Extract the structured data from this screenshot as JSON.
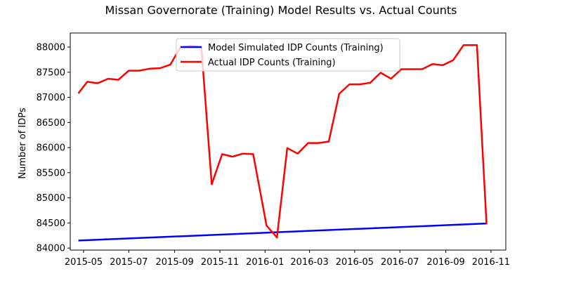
{
  "chart_data": {
    "type": "line",
    "title": "Missan Governorate (Training) Model Results vs. Actual Counts",
    "xlabel": "",
    "ylabel": "Number of IDPs",
    "x_tick_labels": [
      "2015-05",
      "2015-07",
      "2015-09",
      "2015-11",
      "2016-01",
      "2016-03",
      "2016-05",
      "2016-07",
      "2016-09",
      "2016-11"
    ],
    "x_ticks": [
      "2015-05-01",
      "2015-07-01",
      "2015-09-01",
      "2015-11-01",
      "2016-01-01",
      "2016-03-01",
      "2016-05-01",
      "2016-07-01",
      "2016-09-01",
      "2016-11-01"
    ],
    "xlim": [
      "2015-04-13",
      "2016-11-21"
    ],
    "y_ticks": [
      84000,
      84500,
      85000,
      85500,
      86000,
      86500,
      87000,
      87500,
      88000
    ],
    "y_tick_labels": [
      "84000",
      "84500",
      "85000",
      "85500",
      "86000",
      "86500",
      "87000",
      "87500",
      "88000"
    ],
    "ylim": [
      83960,
      88280
    ],
    "grid": false,
    "legend_position": "top-center",
    "series": [
      {
        "name": "Model Simulated IDP Counts (Training)",
        "color": "#0000ff",
        "x": [
          "2015-04-24",
          "2016-10-26"
        ],
        "y": [
          84150,
          84490
        ]
      },
      {
        "name": "Actual IDP Counts (Training)",
        "color": "#ff0000",
        "x": [
          "2015-04-24",
          "2015-05-06",
          "2015-05-20",
          "2015-06-03",
          "2015-06-17",
          "2015-07-01",
          "2015-07-15",
          "2015-07-29",
          "2015-08-12",
          "2015-08-26",
          "2015-09-09",
          "2015-09-23",
          "2015-10-07",
          "2015-10-21",
          "2015-11-04",
          "2015-11-18",
          "2015-12-02",
          "2015-12-16",
          "2016-01-03",
          "2016-01-17",
          "2016-01-31",
          "2016-02-14",
          "2016-02-28",
          "2016-03-13",
          "2016-03-27",
          "2016-04-10",
          "2016-04-24",
          "2016-05-08",
          "2016-05-22",
          "2016-06-05",
          "2016-06-19",
          "2016-07-03",
          "2016-07-17",
          "2016-07-31",
          "2016-08-14",
          "2016-08-28",
          "2016-09-11",
          "2016-09-25",
          "2016-10-13",
          "2016-10-26"
        ],
        "y": [
          87080,
          87310,
          87280,
          87370,
          87350,
          87530,
          87530,
          87570,
          87580,
          87650,
          88000,
          88030,
          88000,
          85270,
          85870,
          85820,
          85880,
          85870,
          84450,
          84210,
          85990,
          85880,
          86090,
          86090,
          86120,
          87070,
          87260,
          87260,
          87290,
          87490,
          87370,
          87560,
          87560,
          87560,
          87660,
          87640,
          87740,
          88040,
          88040,
          84470
        ]
      }
    ]
  }
}
